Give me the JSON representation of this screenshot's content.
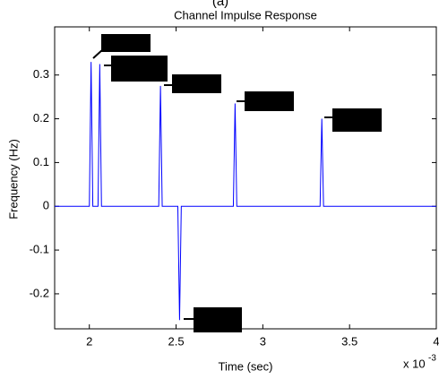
{
  "chart_data": {
    "type": "line",
    "panel_label": "(a)",
    "title": "Channel Impulse Response",
    "x_label": "Time (sec)",
    "y_label": "Frequency (Hz)",
    "x_scale_label": {
      "base": "x 10",
      "exponent": "-3"
    },
    "x": [
      1.8,
      2.0,
      2.01,
      2.02,
      2.05,
      2.06,
      2.07,
      2.4,
      2.41,
      2.42,
      2.51,
      2.52,
      2.53,
      2.83,
      2.84,
      2.85,
      3.33,
      3.34,
      3.35,
      4.0
    ],
    "series": [
      {
        "name": "impulse response",
        "color": "#0000ff",
        "values": [
          0,
          0,
          0.33,
          0,
          0,
          0.325,
          0,
          0,
          0.275,
          0,
          0,
          -0.26,
          0,
          0,
          0.235,
          0,
          0,
          0.2,
          0,
          0
        ]
      }
    ],
    "xlim": [
      1.8,
      4
    ],
    "ylim": [
      -0.28,
      0.41
    ],
    "xticks": [
      2,
      2.5,
      3,
      3.5,
      4
    ],
    "yticks": [
      -0.2,
      -0.1,
      0,
      0.1,
      0.2,
      0.3
    ]
  }
}
